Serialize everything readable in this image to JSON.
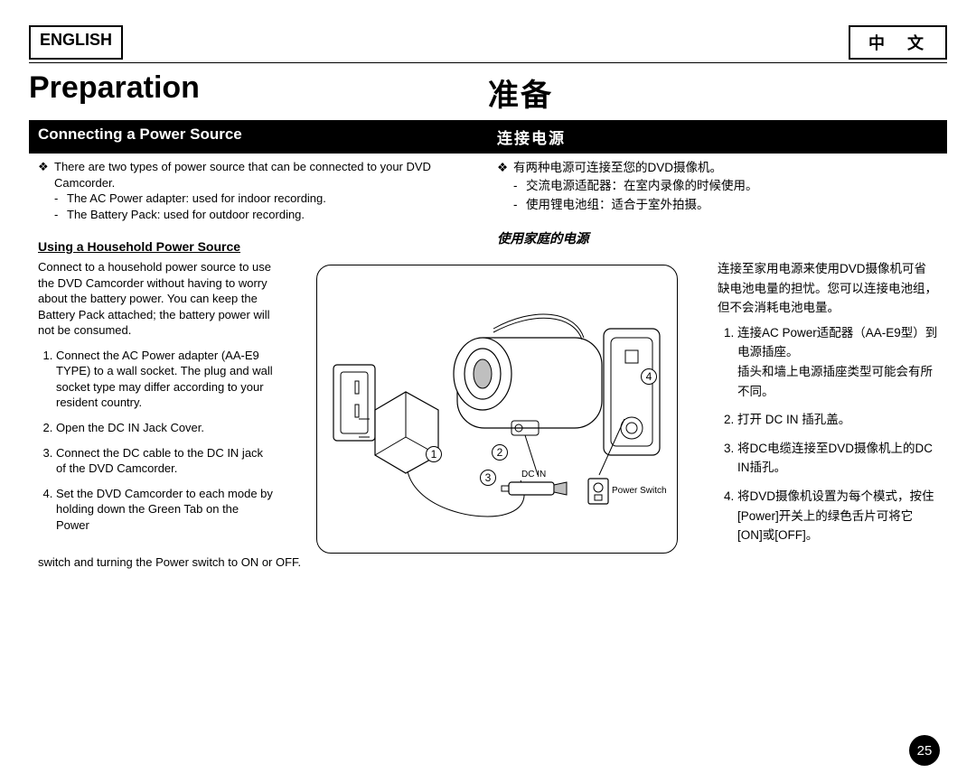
{
  "page_number": "25",
  "lang_tab_en": "ENGLISH",
  "lang_tab_cn": "中  文",
  "title_en": "Preparation",
  "title_cn": "准备",
  "section_en": "Connecting a Power Source",
  "section_cn": "连接电源",
  "en": {
    "intro": "There are two types of power source that can be connected to your DVD Camcorder.",
    "sub1": "The AC Power adapter: used for indoor recording.",
    "sub2": "The Battery Pack: used for outdoor recording.",
    "subhead": "Using a Household Power Source",
    "para": "Connect to a household power source to use the DVD Camcorder without having to worry about the battery power. You can keep the Battery Pack attached; the battery power will not be consumed.",
    "steps": [
      "Connect the AC Power adapter (AA-E9 TYPE) to a wall socket. The plug and wall socket type may differ according to your resident country.",
      "Open the DC IN Jack Cover.",
      "Connect the DC cable to the DC IN jack of the DVD Camcorder.",
      "Set the DVD Camcorder to each mode by holding down the Green Tab on the Power"
    ],
    "cont": "switch and turning the Power switch to ON or OFF."
  },
  "cn": {
    "intro": "有两种电源可连接至您的DVD摄像机。",
    "sub1": "交流电源适配器：在室内录像的时候使用。",
    "sub2": "使用锂电池组：适合于室外拍摄。",
    "subhead": "使用家庭的电源",
    "para": "连接至家用电源来使用DVD摄像机可省缺电池电量的担忧。您可以连接电池组，但不会消耗电池电量。",
    "steps": [
      "连接AC Power适配器（AA-E9型）到电源插座。\n插头和墙上电源插座类型可能会有所不同。",
      "打开 DC IN 插孔盖。",
      "将DC电缆连接至DVD摄像机上的DC IN插孔。",
      "将DVD摄像机设置为每个模式，按住[Power]开关上的绿色舌片可将它[ON]或[OFF]。"
    ]
  },
  "diagram": {
    "labels": {
      "dcin": "DC IN",
      "power": "Power Switch"
    },
    "nums": [
      "1",
      "2",
      "3",
      "4"
    ]
  }
}
